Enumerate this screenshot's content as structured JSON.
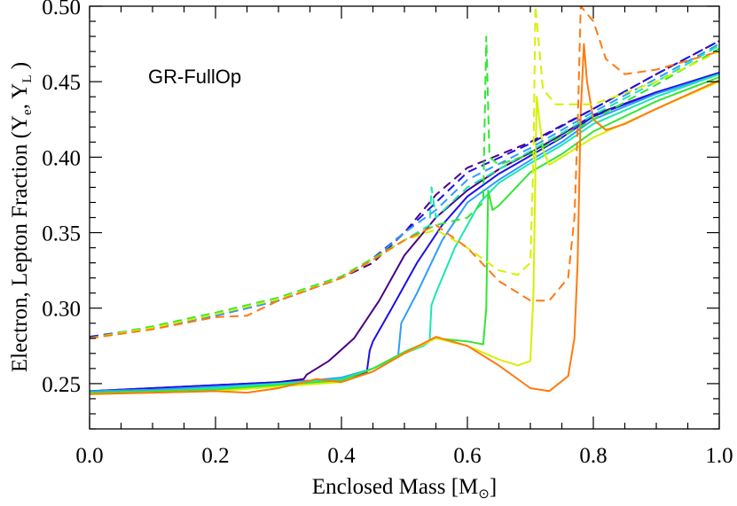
{
  "chart_data": {
    "type": "line",
    "annotation": "GR-FullOp",
    "xlabel": "Enclosed Mass [M",
    "xlabel_sub": "⊙",
    "xlabel_close": "]",
    "ylabel": "Electron, Lepton Fraction (Y",
    "ylabel_sub1": "e",
    "ylabel_mid": ", Y",
    "ylabel_sub2": "L",
    "ylabel_close": " )",
    "xlim": [
      0.0,
      1.0
    ],
    "ylim": [
      0.22,
      0.5
    ],
    "x_ticks": [
      "0.0",
      "0.2",
      "0.4",
      "0.6",
      "0.8",
      "1.0"
    ],
    "y_ticks": [
      "0.25",
      "0.30",
      "0.35",
      "0.40",
      "0.45",
      "0.50"
    ],
    "series": [
      {
        "color": "#4b0082",
        "style": "solid",
        "points": [
          [
            0,
            0.245
          ],
          [
            0.1,
            0.247
          ],
          [
            0.2,
            0.249
          ],
          [
            0.3,
            0.251
          ],
          [
            0.34,
            0.253
          ],
          [
            0.345,
            0.256
          ],
          [
            0.38,
            0.265
          ],
          [
            0.42,
            0.28
          ],
          [
            0.46,
            0.305
          ],
          [
            0.5,
            0.335
          ],
          [
            0.55,
            0.36
          ],
          [
            0.6,
            0.378
          ],
          [
            0.65,
            0.392
          ],
          [
            0.7,
            0.403
          ],
          [
            0.75,
            0.415
          ],
          [
            0.8,
            0.428
          ],
          [
            0.9,
            0.443
          ],
          [
            1.0,
            0.455
          ]
        ]
      },
      {
        "color": "#1e10e6",
        "style": "solid",
        "points": [
          [
            0,
            0.245
          ],
          [
            0.1,
            0.247
          ],
          [
            0.2,
            0.249
          ],
          [
            0.3,
            0.251
          ],
          [
            0.4,
            0.253
          ],
          [
            0.44,
            0.257
          ],
          [
            0.445,
            0.272
          ],
          [
            0.45,
            0.278
          ],
          [
            0.48,
            0.3
          ],
          [
            0.52,
            0.33
          ],
          [
            0.56,
            0.355
          ],
          [
            0.6,
            0.374
          ],
          [
            0.65,
            0.389
          ],
          [
            0.7,
            0.401
          ],
          [
            0.75,
            0.413
          ],
          [
            0.8,
            0.427
          ],
          [
            0.9,
            0.443
          ],
          [
            1.0,
            0.456
          ]
        ]
      },
      {
        "color": "#2f9bff",
        "style": "solid",
        "points": [
          [
            0,
            0.245
          ],
          [
            0.1,
            0.246
          ],
          [
            0.2,
            0.248
          ],
          [
            0.3,
            0.25
          ],
          [
            0.4,
            0.254
          ],
          [
            0.45,
            0.26
          ],
          [
            0.49,
            0.268
          ],
          [
            0.495,
            0.29
          ],
          [
            0.52,
            0.31
          ],
          [
            0.56,
            0.345
          ],
          [
            0.6,
            0.37
          ],
          [
            0.65,
            0.385
          ],
          [
            0.7,
            0.398
          ],
          [
            0.75,
            0.41
          ],
          [
            0.8,
            0.425
          ],
          [
            0.9,
            0.442
          ],
          [
            1.0,
            0.455
          ]
        ]
      },
      {
        "color": "#18e8b0",
        "style": "solid",
        "points": [
          [
            0,
            0.244
          ],
          [
            0.1,
            0.245
          ],
          [
            0.2,
            0.247
          ],
          [
            0.3,
            0.25
          ],
          [
            0.4,
            0.253
          ],
          [
            0.45,
            0.26
          ],
          [
            0.5,
            0.27
          ],
          [
            0.53,
            0.275
          ],
          [
            0.54,
            0.278
          ],
          [
            0.543,
            0.302
          ],
          [
            0.55,
            0.31
          ],
          [
            0.58,
            0.34
          ],
          [
            0.62,
            0.37
          ],
          [
            0.65,
            0.383
          ],
          [
            0.7,
            0.396
          ],
          [
            0.75,
            0.408
          ],
          [
            0.8,
            0.422
          ],
          [
            0.9,
            0.44
          ],
          [
            1.0,
            0.455
          ]
        ]
      },
      {
        "color": "#33e633",
        "style": "solid",
        "points": [
          [
            0,
            0.244
          ],
          [
            0.1,
            0.245
          ],
          [
            0.2,
            0.246
          ],
          [
            0.3,
            0.249
          ],
          [
            0.4,
            0.252
          ],
          [
            0.45,
            0.26
          ],
          [
            0.5,
            0.271
          ],
          [
            0.55,
            0.28
          ],
          [
            0.6,
            0.278
          ],
          [
            0.625,
            0.276
          ],
          [
            0.63,
            0.3
          ],
          [
            0.633,
            0.378
          ],
          [
            0.64,
            0.365
          ],
          [
            0.65,
            0.368
          ],
          [
            0.7,
            0.39
          ],
          [
            0.75,
            0.402
          ],
          [
            0.8,
            0.417
          ],
          [
            0.9,
            0.437
          ],
          [
            1.0,
            0.453
          ]
        ]
      },
      {
        "color": "#d6f000",
        "style": "solid",
        "points": [
          [
            0,
            0.243
          ],
          [
            0.1,
            0.244
          ],
          [
            0.2,
            0.245
          ],
          [
            0.3,
            0.248
          ],
          [
            0.4,
            0.251
          ],
          [
            0.45,
            0.258
          ],
          [
            0.5,
            0.27
          ],
          [
            0.55,
            0.28
          ],
          [
            0.6,
            0.275
          ],
          [
            0.65,
            0.266
          ],
          [
            0.68,
            0.262
          ],
          [
            0.7,
            0.265
          ],
          [
            0.705,
            0.31
          ],
          [
            0.71,
            0.44
          ],
          [
            0.72,
            0.405
          ],
          [
            0.73,
            0.395
          ],
          [
            0.75,
            0.4
          ],
          [
            0.8,
            0.413
          ],
          [
            0.9,
            0.432
          ],
          [
            1.0,
            0.45
          ]
        ]
      },
      {
        "color": "#ff7a10",
        "style": "solid",
        "points": [
          [
            0,
            0.243
          ],
          [
            0.1,
            0.244
          ],
          [
            0.2,
            0.245
          ],
          [
            0.25,
            0.244
          ],
          [
            0.3,
            0.247
          ],
          [
            0.36,
            0.253
          ],
          [
            0.4,
            0.251
          ],
          [
            0.45,
            0.258
          ],
          [
            0.5,
            0.27
          ],
          [
            0.55,
            0.281
          ],
          [
            0.6,
            0.275
          ],
          [
            0.65,
            0.262
          ],
          [
            0.7,
            0.247
          ],
          [
            0.73,
            0.245
          ],
          [
            0.76,
            0.255
          ],
          [
            0.77,
            0.28
          ],
          [
            0.775,
            0.33
          ],
          [
            0.78,
            0.43
          ],
          [
            0.785,
            0.475
          ],
          [
            0.79,
            0.45
          ],
          [
            0.8,
            0.425
          ],
          [
            0.82,
            0.418
          ],
          [
            0.85,
            0.422
          ],
          [
            0.9,
            0.432
          ],
          [
            1.0,
            0.451
          ]
        ]
      },
      {
        "color": "#4b0082",
        "style": "dashed",
        "points": [
          [
            0,
            0.281
          ],
          [
            0.1,
            0.287
          ],
          [
            0.2,
            0.295
          ],
          [
            0.3,
            0.305
          ],
          [
            0.4,
            0.32
          ],
          [
            0.45,
            0.33
          ],
          [
            0.5,
            0.35
          ],
          [
            0.55,
            0.375
          ],
          [
            0.6,
            0.393
          ],
          [
            0.7,
            0.41
          ],
          [
            0.8,
            0.432
          ],
          [
            0.9,
            0.455
          ],
          [
            1.0,
            0.477
          ]
        ]
      },
      {
        "color": "#1e10e6",
        "style": "dashed",
        "points": [
          [
            0,
            0.281
          ],
          [
            0.1,
            0.287
          ],
          [
            0.2,
            0.295
          ],
          [
            0.3,
            0.305
          ],
          [
            0.4,
            0.32
          ],
          [
            0.45,
            0.333
          ],
          [
            0.5,
            0.35
          ],
          [
            0.55,
            0.37
          ],
          [
            0.6,
            0.39
          ],
          [
            0.7,
            0.409
          ],
          [
            0.8,
            0.432
          ],
          [
            0.9,
            0.455
          ],
          [
            1.0,
            0.477
          ]
        ]
      },
      {
        "color": "#2f9bff",
        "style": "dashed",
        "points": [
          [
            0,
            0.28
          ],
          [
            0.1,
            0.287
          ],
          [
            0.2,
            0.295
          ],
          [
            0.3,
            0.305
          ],
          [
            0.4,
            0.32
          ],
          [
            0.45,
            0.332
          ],
          [
            0.5,
            0.35
          ],
          [
            0.55,
            0.365
          ],
          [
            0.6,
            0.385
          ],
          [
            0.7,
            0.406
          ],
          [
            0.8,
            0.43
          ],
          [
            0.9,
            0.452
          ],
          [
            1.0,
            0.475
          ]
        ]
      },
      {
        "color": "#18e8b0",
        "style": "dashed",
        "points": [
          [
            0,
            0.28
          ],
          [
            0.1,
            0.287
          ],
          [
            0.2,
            0.296
          ],
          [
            0.3,
            0.306
          ],
          [
            0.4,
            0.32
          ],
          [
            0.45,
            0.333
          ],
          [
            0.5,
            0.345
          ],
          [
            0.54,
            0.355
          ],
          [
            0.543,
            0.38
          ],
          [
            0.55,
            0.36
          ],
          [
            0.6,
            0.38
          ],
          [
            0.7,
            0.404
          ],
          [
            0.8,
            0.428
          ],
          [
            0.9,
            0.45
          ],
          [
            1.0,
            0.474
          ]
        ]
      },
      {
        "color": "#33e633",
        "style": "dashed",
        "points": [
          [
            0,
            0.28
          ],
          [
            0.1,
            0.288
          ],
          [
            0.2,
            0.297
          ],
          [
            0.3,
            0.307
          ],
          [
            0.4,
            0.321
          ],
          [
            0.45,
            0.333
          ],
          [
            0.5,
            0.345
          ],
          [
            0.55,
            0.355
          ],
          [
            0.6,
            0.36
          ],
          [
            0.625,
            0.37
          ],
          [
            0.63,
            0.48
          ],
          [
            0.635,
            0.4
          ],
          [
            0.65,
            0.395
          ],
          [
            0.7,
            0.402
          ],
          [
            0.8,
            0.425
          ],
          [
            0.9,
            0.448
          ],
          [
            1.0,
            0.472
          ]
        ]
      },
      {
        "color": "#d6f000",
        "style": "dashed",
        "points": [
          [
            0,
            0.28
          ],
          [
            0.1,
            0.287
          ],
          [
            0.2,
            0.296
          ],
          [
            0.3,
            0.306
          ],
          [
            0.4,
            0.32
          ],
          [
            0.45,
            0.332
          ],
          [
            0.5,
            0.345
          ],
          [
            0.55,
            0.352
          ],
          [
            0.6,
            0.34
          ],
          [
            0.65,
            0.325
          ],
          [
            0.68,
            0.322
          ],
          [
            0.7,
            0.33
          ],
          [
            0.705,
            0.4
          ],
          [
            0.708,
            0.5
          ],
          [
            0.72,
            0.445
          ],
          [
            0.74,
            0.435
          ],
          [
            0.8,
            0.435
          ],
          [
            0.9,
            0.45
          ],
          [
            1.0,
            0.47
          ]
        ]
      },
      {
        "color": "#ff7a10",
        "style": "dashed",
        "points": [
          [
            0,
            0.28
          ],
          [
            0.1,
            0.286
          ],
          [
            0.2,
            0.294
          ],
          [
            0.25,
            0.295
          ],
          [
            0.3,
            0.305
          ],
          [
            0.4,
            0.32
          ],
          [
            0.45,
            0.332
          ],
          [
            0.5,
            0.345
          ],
          [
            0.55,
            0.355
          ],
          [
            0.6,
            0.34
          ],
          [
            0.65,
            0.318
          ],
          [
            0.7,
            0.305
          ],
          [
            0.73,
            0.305
          ],
          [
            0.76,
            0.32
          ],
          [
            0.77,
            0.36
          ],
          [
            0.775,
            0.42
          ],
          [
            0.78,
            0.5
          ],
          [
            0.8,
            0.49
          ],
          [
            0.82,
            0.465
          ],
          [
            0.85,
            0.455
          ],
          [
            0.9,
            0.458
          ],
          [
            1.0,
            0.47
          ]
        ]
      }
    ]
  }
}
